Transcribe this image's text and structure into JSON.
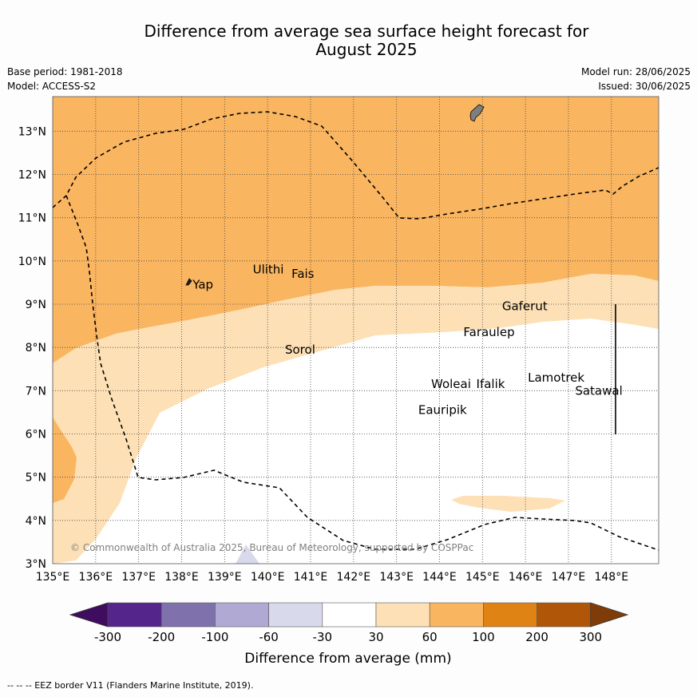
{
  "title_line1": "Difference from average sea surface height forecast for",
  "title_line2": "August 2025",
  "base_period": "Base period: 1981-2018",
  "model": "Model: ACCESS-S2",
  "model_run": "Model run: 28/06/2025",
  "issued": "Issued: 30/06/2025",
  "map": {
    "lon_range": [
      135,
      149.1
    ],
    "lat_range": [
      3,
      13.8
    ],
    "lon_ticks": [
      "135°E",
      "136°E",
      "137°E",
      "138°E",
      "139°E",
      "140°E",
      "141°E",
      "142°E",
      "143°E",
      "144°E",
      "145°E",
      "146°E",
      "147°E",
      "148°E"
    ],
    "lat_ticks": [
      "3°N",
      "4°N",
      "5°N",
      "6°N",
      "7°N",
      "8°N",
      "9°N",
      "10°N",
      "11°N",
      "12°N",
      "13°N"
    ],
    "grid": true,
    "places": [
      {
        "name": "Yap",
        "lon": 138.2,
        "lat": 9.45
      },
      {
        "name": "Ulithi",
        "lon": 139.6,
        "lat": 9.8
      },
      {
        "name": "Fais",
        "lon": 140.5,
        "lat": 9.7
      },
      {
        "name": "Gaferut",
        "lon": 145.4,
        "lat": 8.95
      },
      {
        "name": "Faraulep",
        "lon": 144.5,
        "lat": 8.35
      },
      {
        "name": "Sorol",
        "lon": 140.35,
        "lat": 7.95
      },
      {
        "name": "Woleai",
        "lon": 143.75,
        "lat": 7.15
      },
      {
        "name": "Ifalik",
        "lon": 144.8,
        "lat": 7.15
      },
      {
        "name": "Lamotrek",
        "lon": 146.0,
        "lat": 7.3
      },
      {
        "name": "Satawal",
        "lon": 147.1,
        "lat": 7.0
      },
      {
        "name": "Eauripik",
        "lon": 143.45,
        "lat": 6.55
      }
    ],
    "copyright": "© Commonwealth of Australia 2025, Bureau of Meteorology, supported by COSPPac"
  },
  "colorbar": {
    "labels": [
      "-300",
      "-200",
      "-100",
      "-60",
      "-30",
      "30",
      "60",
      "100",
      "200",
      "300"
    ],
    "colors": [
      "#3f0d5f",
      "#54258a",
      "#7f72ac",
      "#b0a9d3",
      "#d9d9ec",
      "#ffffff",
      "#fde0b5",
      "#fab560",
      "#e08315",
      "#af5608",
      "#7f3c09"
    ],
    "label": "Difference from average (mm)"
  },
  "footnote": "--  --  -- EEZ border V11 (Flanders Marine Institute, 2019)."
}
